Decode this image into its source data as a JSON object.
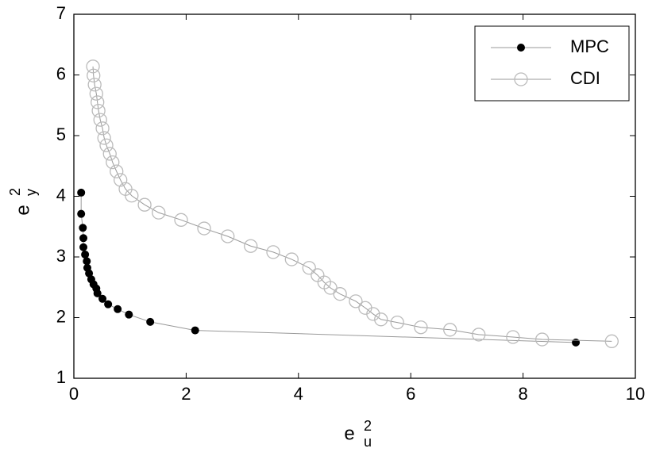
{
  "chart_data": {
    "type": "line",
    "xlabel": {
      "base": "e",
      "sub": "u",
      "sup": "2"
    },
    "ylabel": {
      "base": "e",
      "sub": "y",
      "sup": "2"
    },
    "xlim": [
      0,
      10
    ],
    "ylim": [
      1,
      7
    ],
    "xticks": [
      0,
      2,
      4,
      6,
      8,
      10
    ],
    "yticks": [
      1,
      2,
      3,
      4,
      5,
      6,
      7
    ],
    "legend": "upper right",
    "series": [
      {
        "name": "MPC",
        "color": "#000000",
        "marker": "filled-circle",
        "x": [
          0.13,
          0.13,
          0.16,
          0.17,
          0.17,
          0.2,
          0.23,
          0.24,
          0.27,
          0.31,
          0.35,
          0.4,
          0.42,
          0.51,
          0.61,
          0.78,
          0.98,
          1.36,
          2.16,
          8.94
        ],
        "values": [
          4.06,
          3.71,
          3.48,
          3.31,
          3.16,
          3.04,
          2.93,
          2.82,
          2.73,
          2.63,
          2.55,
          2.48,
          2.4,
          2.31,
          2.22,
          2.14,
          2.05,
          1.93,
          1.79,
          1.59
        ]
      },
      {
        "name": "CDI",
        "color": "#bbbbbb",
        "marker": "open-circle",
        "x": [
          0.34,
          0.35,
          0.37,
          0.4,
          0.42,
          0.44,
          0.47,
          0.51,
          0.54,
          0.58,
          0.64,
          0.69,
          0.76,
          0.83,
          0.92,
          1.03,
          1.26,
          1.51,
          1.91,
          2.32,
          2.74,
          3.15,
          3.55,
          3.88,
          4.19,
          4.34,
          4.46,
          4.57,
          4.74,
          5.02,
          5.19,
          5.33,
          5.47,
          5.76,
          6.18,
          6.7,
          7.21,
          7.82,
          8.34,
          9.58
        ],
        "values": [
          6.14,
          5.99,
          5.84,
          5.69,
          5.55,
          5.41,
          5.26,
          5.12,
          4.96,
          4.84,
          4.7,
          4.56,
          4.41,
          4.27,
          4.12,
          4.01,
          3.86,
          3.73,
          3.61,
          3.47,
          3.34,
          3.18,
          3.08,
          2.96,
          2.82,
          2.7,
          2.58,
          2.49,
          2.39,
          2.27,
          2.16,
          2.06,
          1.97,
          1.92,
          1.84,
          1.8,
          1.72,
          1.68,
          1.64,
          1.61
        ]
      }
    ]
  }
}
